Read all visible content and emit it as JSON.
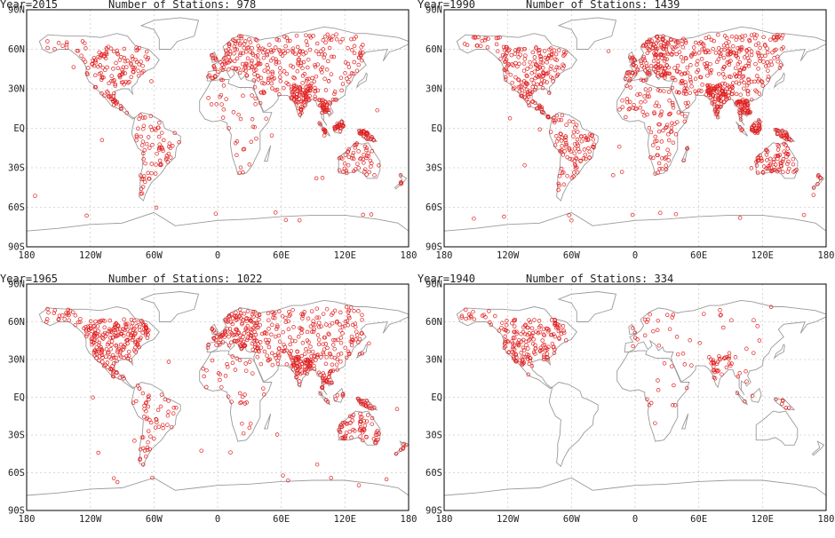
{
  "figure": {
    "ylabels": [
      "90N",
      "60N",
      "30N",
      "EQ",
      "30S",
      "60S",
      "90S"
    ],
    "xlabels": [
      "180",
      "120W",
      "60W",
      "0",
      "60E",
      "120E",
      "180"
    ],
    "colors": {
      "station": "#e02020",
      "land": "#9a9a9a",
      "grid": "#cccccc",
      "frame": "#000000"
    }
  },
  "panels": [
    {
      "year_label": "Year=2015",
      "count_label": "Number of Stations: 978",
      "year": 2015,
      "station_count": 978,
      "density": {
        "na": 0.55,
        "ca": 0.55,
        "sa": 0.6,
        "eu": 0.7,
        "af": 0.35,
        "as": 0.7,
        "sea": 0.9,
        "in": 0.9,
        "au": 0.55,
        "ocean": 0.5
      }
    },
    {
      "year_label": "Year=1990",
      "count_label": "Number of Stations: 1439",
      "year": 1990,
      "station_count": 1439,
      "density": {
        "na": 0.8,
        "ca": 0.7,
        "sa": 0.8,
        "eu": 1.0,
        "af": 0.95,
        "as": 1.0,
        "sea": 1.0,
        "in": 1.0,
        "au": 0.8,
        "ocean": 0.6
      }
    },
    {
      "year_label": "Year=1965",
      "count_label": "Number of Stations: 1022",
      "year": 1965,
      "station_count": 1022,
      "density": {
        "na": 1.0,
        "ca": 0.5,
        "sa": 0.45,
        "eu": 0.9,
        "af": 0.35,
        "as": 0.8,
        "sea": 0.5,
        "in": 0.7,
        "au": 0.7,
        "ocean": 0.5
      }
    },
    {
      "year_label": "Year=1940",
      "count_label": "Number of Stations: 334",
      "year": 1940,
      "station_count": 334,
      "density": {
        "na": 0.8,
        "ca": 0.05,
        "sa": 0.0,
        "eu": 0.12,
        "af": 0.12,
        "as": 0.08,
        "sea": 0.12,
        "in": 0.35,
        "au": 0.0,
        "ocean": 0.0
      }
    }
  ]
}
